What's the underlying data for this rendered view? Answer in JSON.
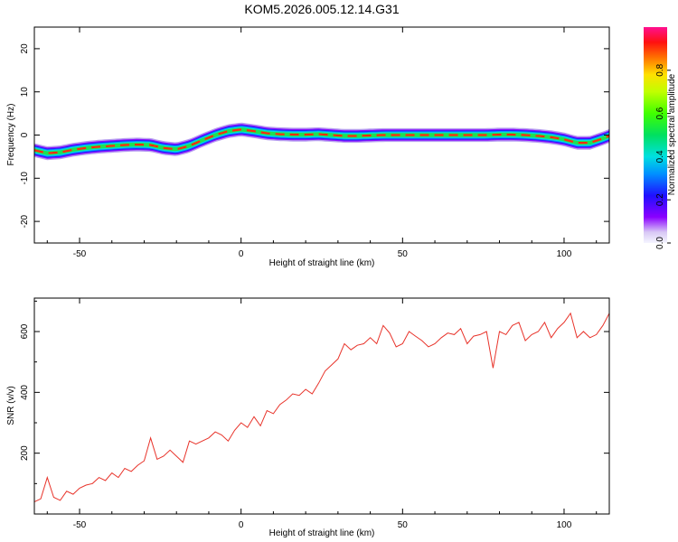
{
  "figure": {
    "title": "KOM5.2026.005.12.14.G31"
  },
  "chart_data": [
    {
      "type": "heatmap",
      "name": "spectrogram",
      "xlabel": "Height of straight line (km)",
      "ylabel": "Frequency (Hz)",
      "xlim": [
        -64,
        114
      ],
      "ylim": [
        -25,
        25
      ],
      "xticks": [
        -50,
        0,
        50,
        100
      ],
      "yticks": [
        -20,
        -10,
        0,
        10,
        20
      ],
      "ridge": {
        "x": [
          -64,
          -60,
          -56,
          -52,
          -48,
          -44,
          -40,
          -36,
          -32,
          -28,
          -24,
          -20,
          -16,
          -12,
          -8,
          -4,
          0,
          4,
          8,
          12,
          16,
          20,
          24,
          28,
          32,
          36,
          40,
          44,
          48,
          52,
          56,
          60,
          64,
          68,
          72,
          76,
          80,
          84,
          88,
          92,
          96,
          100,
          104,
          108,
          112,
          114
        ],
        "frequency": [
          -3.5,
          -4.2,
          -4.0,
          -3.4,
          -3.0,
          -2.7,
          -2.5,
          -2.3,
          -2.2,
          -2.3,
          -3.0,
          -3.3,
          -2.5,
          -1.2,
          0.0,
          0.9,
          1.3,
          0.9,
          0.4,
          0.2,
          0.1,
          0.1,
          0.2,
          0.0,
          -0.2,
          -0.2,
          -0.1,
          0.0,
          0.0,
          0.0,
          0.0,
          0.0,
          0.0,
          0.0,
          0.0,
          0.0,
          0.1,
          0.1,
          0.0,
          -0.2,
          -0.5,
          -1.0,
          -1.8,
          -1.8,
          -0.8,
          -0.2
        ]
      }
    },
    {
      "type": "colorbar",
      "name": "amplitude-colorbar",
      "label": "Normalized spectral amplitude",
      "range": [
        0,
        1
      ],
      "ticks": [
        "0.0",
        "0.2",
        "0.4",
        "0.6",
        "0.8"
      ],
      "tick_values": [
        0.0,
        0.2,
        0.4,
        0.6,
        0.8
      ]
    },
    {
      "type": "line",
      "name": "snr",
      "xlabel": "Height of straight line (km)",
      "ylabel": "SNR (v/v)",
      "xlim": [
        -64,
        114
      ],
      "ylim": [
        0,
        710
      ],
      "xticks": [
        -50,
        0,
        50,
        100
      ],
      "yticks": [
        200,
        400,
        600
      ],
      "series": [
        {
          "name": "SNR",
          "color": "#e8332a",
          "x": [
            -64,
            -62,
            -60,
            -58,
            -56,
            -54,
            -52,
            -50,
            -48,
            -46,
            -44,
            -42,
            -40,
            -38,
            -36,
            -34,
            -32,
            -30,
            -28,
            -26,
            -24,
            -22,
            -20,
            -18,
            -16,
            -14,
            -12,
            -10,
            -8,
            -6,
            -4,
            -2,
            0,
            2,
            4,
            6,
            8,
            10,
            12,
            14,
            16,
            18,
            20,
            22,
            24,
            26,
            28,
            30,
            32,
            34,
            36,
            38,
            40,
            42,
            44,
            46,
            48,
            50,
            52,
            54,
            56,
            58,
            60,
            62,
            64,
            66,
            68,
            70,
            72,
            74,
            76,
            78,
            80,
            82,
            84,
            86,
            88,
            90,
            92,
            94,
            96,
            98,
            100,
            102,
            104,
            106,
            108,
            110,
            112,
            114
          ],
          "values": [
            40,
            50,
            120,
            55,
            45,
            75,
            65,
            85,
            95,
            100,
            120,
            110,
            135,
            120,
            150,
            140,
            160,
            175,
            250,
            180,
            190,
            210,
            190,
            170,
            240,
            230,
            240,
            250,
            270,
            260,
            240,
            275,
            300,
            285,
            320,
            290,
            340,
            330,
            360,
            375,
            395,
            390,
            410,
            395,
            430,
            470,
            490,
            510,
            560,
            540,
            555,
            560,
            580,
            560,
            620,
            595,
            550,
            560,
            600,
            585,
            570,
            550,
            560,
            580,
            595,
            590,
            610,
            560,
            585,
            590,
            600,
            480,
            600,
            590,
            620,
            630,
            570,
            590,
            600,
            630,
            580,
            610,
            630,
            660,
            580,
            600,
            580,
            590,
            620,
            660
          ]
        }
      ]
    }
  ]
}
